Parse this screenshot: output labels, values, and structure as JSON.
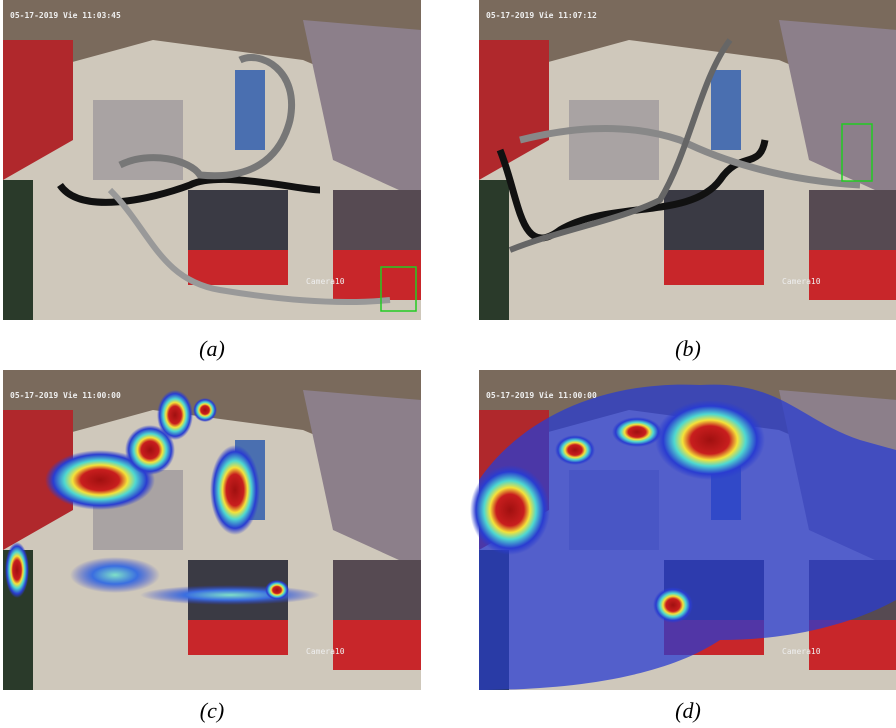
{
  "panels": [
    {
      "caption": "(a)",
      "timestamp": "05-17-2019 Vie 11:03:45",
      "camera": "Camera10"
    },
    {
      "caption": "(b)",
      "timestamp": "05-17-2019 Vie 11:07:12",
      "camera": "Camera10"
    },
    {
      "caption": "(c)",
      "timestamp": "05-17-2019 Vie 11:00:00",
      "camera": "Camera10"
    },
    {
      "caption": "(d)",
      "timestamp": "05-17-2019 Vie 11:00:00",
      "camera": "Camera10"
    }
  ]
}
